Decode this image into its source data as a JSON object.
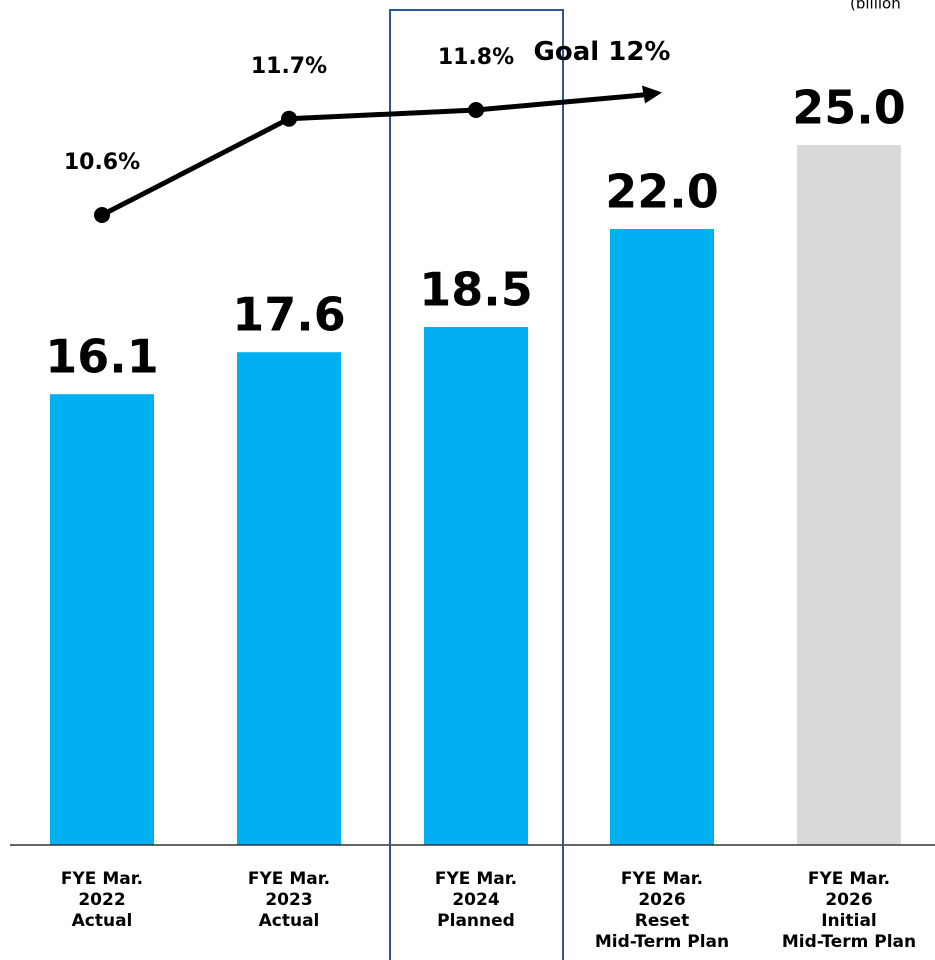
{
  "chart_data": {
    "type": "bar",
    "unit_label": "(billion",
    "categories": [
      [
        "FYE Mar.",
        "2022",
        "Actual"
      ],
      [
        "FYE Mar.",
        "2023",
        "Actual"
      ],
      [
        "FYE Mar.",
        "2024",
        "Planned"
      ],
      [
        "FYE Mar.",
        "2026",
        "Reset",
        "Mid-Term Plan"
      ],
      [
        "FYE Mar.",
        "2026",
        "Initial",
        "Mid-Term Plan"
      ]
    ],
    "values": [
      16.1,
      17.6,
      18.5,
      22.0,
      25.0
    ],
    "value_labels": [
      "16.1",
      "17.6",
      "18.5",
      "22.0",
      "25.0"
    ],
    "colors": [
      "#00b0f0",
      "#00b0f0",
      "#00b0f0",
      "#00b0f0",
      "#d9d9d9"
    ],
    "ylim": [
      0,
      30
    ],
    "highlight": 2,
    "line": {
      "type": "line",
      "axis": "y2",
      "color": "#000000",
      "values": [
        10.6,
        11.7,
        11.8,
        null,
        null
      ],
      "value_labels": [
        "10.6%",
        "11.7%",
        "11.8%",
        null,
        null
      ]
    },
    "goal": {
      "index": 3,
      "value": 12,
      "label": "Goal 12%"
    },
    "y2lim": [
      3.4,
      13.0
    ]
  }
}
